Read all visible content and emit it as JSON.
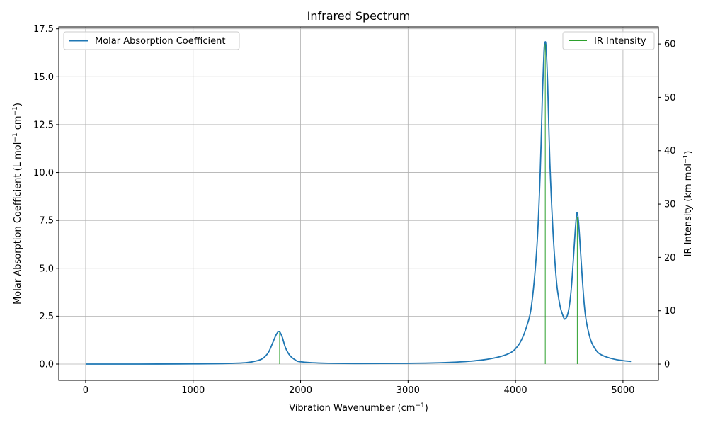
{
  "chart_data": {
    "type": "line",
    "title": "Infrared Spectrum",
    "xlabel_base": "Vibration Wavenumber (cm",
    "xlabel_sup": "−1",
    "xlabel_tail": ")",
    "ylabel_left_base": "Molar Absorption Coefficient (L mol",
    "ylabel_left_sup1": "−1",
    "ylabel_left_mid": " cm",
    "ylabel_left_sup2": "−1",
    "ylabel_left_tail": ")",
    "ylabel_right_base": "IR Intensity (km mol",
    "ylabel_right_sup": "−1",
    "ylabel_right_tail": ")",
    "xlim": [
      -250,
      5330
    ],
    "ylim_left": [
      -0.85,
      17.6
    ],
    "ylim_right": [
      -3.05,
      63.2
    ],
    "x_ticks": [
      0,
      1000,
      2000,
      3000,
      4000,
      5000
    ],
    "y_ticks_left": [
      0.0,
      2.5,
      5.0,
      7.5,
      10.0,
      12.5,
      15.0,
      17.5
    ],
    "y_ticks_left_labels": [
      "0.0",
      "2.5",
      "5.0",
      "7.5",
      "10.0",
      "12.5",
      "15.0",
      "17.5"
    ],
    "y_ticks_right": [
      0,
      10,
      20,
      30,
      40,
      50,
      60
    ],
    "y_ticks_right_labels": [
      "0",
      "10",
      "20",
      "30",
      "40",
      "50",
      "60"
    ],
    "grid": true,
    "series": [
      {
        "name": "Molar Absorption Coefficient",
        "color": "#1f77b4",
        "axis": "left",
        "kind": "line",
        "x": [
          0,
          500,
          1000,
          1300,
          1500,
          1600,
          1650,
          1700,
          1740,
          1770,
          1790,
          1800,
          1810,
          1830,
          1860,
          1900,
          1950,
          2000,
          2200,
          2500,
          3000,
          3300,
          3500,
          3700,
          3850,
          3950,
          4000,
          4050,
          4100,
          4150,
          4200,
          4230,
          4250,
          4265,
          4275,
          4285,
          4300,
          4320,
          4350,
          4380,
          4400,
          4420,
          4440,
          4450,
          4460,
          4480,
          4500,
          4520,
          4540,
          4555,
          4565,
          4572,
          4580,
          4590,
          4605,
          4620,
          4640,
          4660,
          4700,
          4750,
          4800,
          4900,
          5000,
          5075
        ],
        "y": [
          0.0,
          0.0,
          0.01,
          0.03,
          0.08,
          0.18,
          0.3,
          0.6,
          1.1,
          1.5,
          1.68,
          1.7,
          1.65,
          1.4,
          0.85,
          0.45,
          0.22,
          0.12,
          0.05,
          0.03,
          0.04,
          0.07,
          0.12,
          0.22,
          0.38,
          0.58,
          0.8,
          1.2,
          1.9,
          3.1,
          6.2,
          10.0,
          14.0,
          16.3,
          16.8,
          16.5,
          14.5,
          10.5,
          6.8,
          4.4,
          3.5,
          2.9,
          2.55,
          2.4,
          2.35,
          2.5,
          3.0,
          4.0,
          5.6,
          6.9,
          7.6,
          7.9,
          7.75,
          7.2,
          5.9,
          4.6,
          3.1,
          2.2,
          1.25,
          0.72,
          0.48,
          0.28,
          0.18,
          0.14
        ]
      },
      {
        "name": "IR Intensity",
        "color": "#2ca02c",
        "axis": "right",
        "kind": "stick",
        "x": [
          1805,
          4277,
          4575
        ],
        "y": [
          6.0,
          60.0,
          27.6
        ]
      }
    ],
    "legend_left_position": "upper-left",
    "legend_right_position": "upper-right"
  }
}
